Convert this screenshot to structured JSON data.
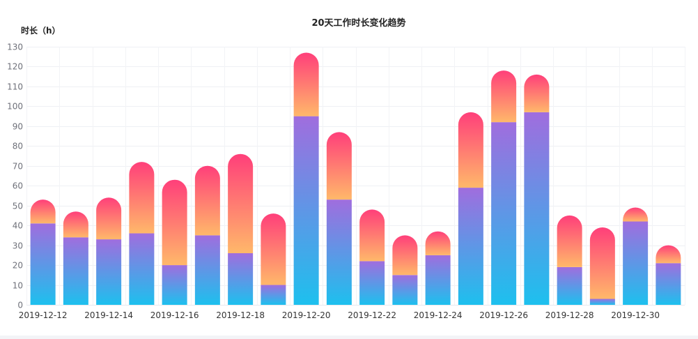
{
  "chart_data": {
    "type": "bar",
    "stacked": true,
    "title": "20天工作时长变化趋势",
    "ylabel": "时长（h）",
    "xlabel": "",
    "ylim": [
      0,
      130
    ],
    "yticks": [
      0,
      10,
      20,
      30,
      40,
      50,
      60,
      70,
      80,
      90,
      100,
      110,
      120,
      130
    ],
    "grid": true,
    "categories": [
      "2019-12-12",
      "2019-12-13",
      "2019-12-14",
      "2019-12-15",
      "2019-12-16",
      "2019-12-17",
      "2019-12-18",
      "2019-12-19",
      "2019-12-20",
      "2019-12-21",
      "2019-12-22",
      "2019-12-23",
      "2019-12-24",
      "2019-12-25",
      "2019-12-26",
      "2019-12-27",
      "2019-12-28",
      "2019-12-29",
      "2019-12-30",
      "2019-12-31"
    ],
    "x_tick_labels_shown": [
      "2019-12-12",
      "",
      "2019-12-14",
      "",
      "2019-12-16",
      "",
      "2019-12-18",
      "",
      "2019-12-20",
      "",
      "2019-12-22",
      "",
      "2019-12-24",
      "",
      "2019-12-26",
      "",
      "2019-12-28",
      "",
      "2019-12-30",
      ""
    ],
    "series": [
      {
        "values": [
          41,
          34,
          33,
          36,
          20,
          35,
          26,
          10,
          95,
          53,
          22,
          15,
          25,
          59,
          92,
          97,
          19,
          3,
          42,
          21
        ],
        "gradient": [
          "#a06dde",
          "#1dc0ee"
        ]
      },
      {
        "values": [
          12,
          13,
          21,
          36,
          43,
          35,
          50,
          36,
          32,
          34,
          26,
          20,
          12,
          38,
          26,
          19,
          26,
          36,
          7,
          9
        ],
        "gradient": [
          "#ff3f7a",
          "#ffb86a"
        ]
      }
    ]
  }
}
